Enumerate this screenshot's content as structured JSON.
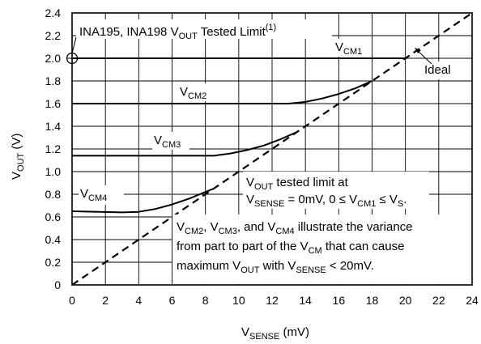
{
  "chart_data": {
    "type": "line",
    "xlabel": {
      "main": "V",
      "sub": "SENSE",
      "rest": " (mV)"
    },
    "ylabel": {
      "main": "V",
      "sub": "OUT",
      "rest": " (V)"
    },
    "xlim": [
      0,
      24
    ],
    "ylim": [
      0,
      2.4
    ],
    "x_ticks": [
      "0",
      "2",
      "4",
      "6",
      "8",
      "10",
      "12",
      "14",
      "16",
      "18",
      "20",
      "22",
      "24"
    ],
    "y_ticks": [
      "0",
      "0.2",
      "0.4",
      "0.6",
      "0.8",
      "1.0",
      "1.2",
      "1.4",
      "1.6",
      "1.8",
      "2.0",
      "2.2",
      "2.4"
    ],
    "grid": true,
    "series": [
      {
        "name": "Ideal",
        "style": "dashed",
        "x": [
          0,
          24
        ],
        "y": [
          0,
          2.4
        ]
      },
      {
        "name": "VCM1",
        "style": "solid",
        "x": [
          0,
          20
        ],
        "y": [
          2.0,
          2.0
        ]
      },
      {
        "name": "VCM2",
        "style": "solid",
        "x": [
          0,
          13,
          14,
          15,
          16,
          17,
          18
        ],
        "y": [
          1.6,
          1.6,
          1.615,
          1.645,
          1.685,
          1.735,
          1.8
        ]
      },
      {
        "name": "VCM3",
        "style": "solid",
        "x": [
          0,
          8.5,
          9.5,
          10.5,
          11.5,
          12.5,
          13.5
        ],
        "y": [
          1.14,
          1.14,
          1.16,
          1.19,
          1.23,
          1.285,
          1.35
        ]
      },
      {
        "name": "VCM4",
        "style": "solid",
        "x": [
          0,
          3,
          4,
          5,
          6,
          7,
          8,
          8.5
        ],
        "y": [
          0.65,
          0.64,
          0.645,
          0.67,
          0.71,
          0.76,
          0.82,
          0.85
        ]
      }
    ],
    "annotations": {
      "top_label": {
        "pre": "INA195, INA198 V",
        "sub": "OUT",
        "post": " Tested Limit",
        "sup": "(1)"
      },
      "ideal": "Ideal",
      "vcm1": {
        "main": "V",
        "sub": "CM1"
      },
      "vcm2": {
        "main": "V",
        "sub": "CM2"
      },
      "vcm3": {
        "main": "V",
        "sub": "CM3"
      },
      "vcm4": {
        "main": "V",
        "sub": "CM4"
      },
      "box1_line1": {
        "main": "V",
        "sub": "OUT",
        "rest": " tested limit at"
      },
      "box1_line2": {
        "a": "V",
        "a_sub": "SENSE",
        "b": " = 0mV, 0 ≤ V",
        "b_sub": "CM1",
        "c": " ≤ V",
        "c_sub": "S",
        "d": "."
      },
      "box2_line1": {
        "a": "V",
        "a_sub": "CM2",
        "b": ", V",
        "b_sub": "CM3",
        "c": ", and V",
        "c_sub": "CM4",
        "d": " illustrate the variance"
      },
      "box2_line2": {
        "a": "from part to part of the V",
        "a_sub": "CM",
        "b": " that can cause"
      },
      "box2_line3": {
        "a": "maximum V",
        "a_sub": "OUT",
        "b": " with V",
        "b_sub": "SENSE",
        "c": " < 20mV."
      }
    }
  }
}
